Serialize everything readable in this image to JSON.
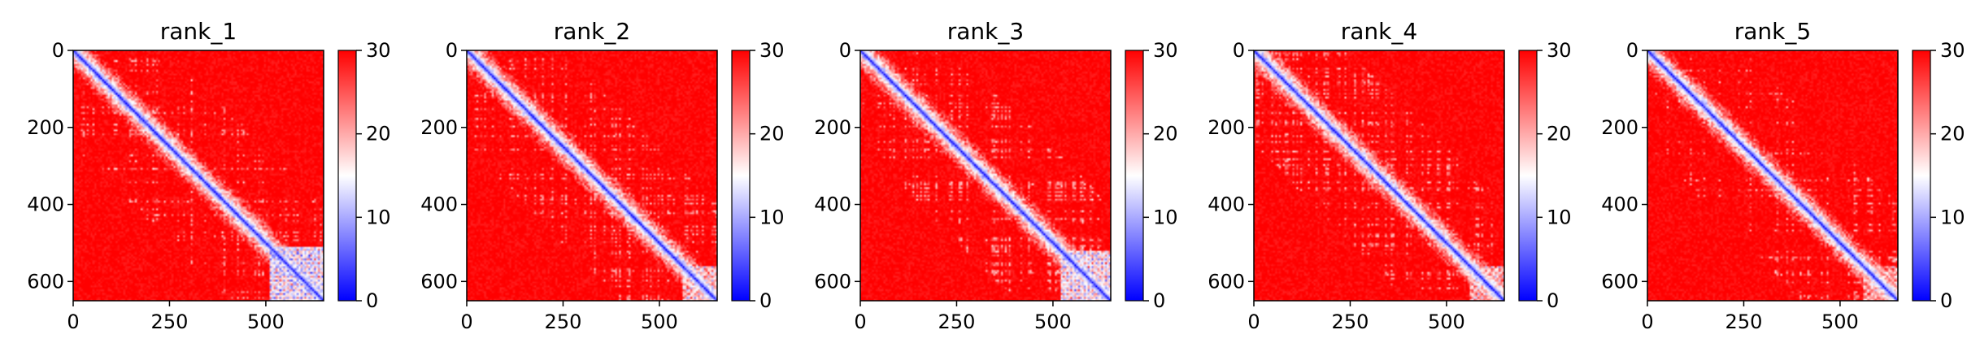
{
  "chart_data": [
    {
      "type": "heatmap",
      "title": "rank_1",
      "xticks": [
        0,
        250,
        500
      ],
      "yticks": [
        0,
        200,
        400,
        600
      ],
      "xlim": [
        0,
        650
      ],
      "ylim": [
        650,
        0
      ],
      "colorbar": {
        "min": 0,
        "max": 30,
        "ticks": [
          0,
          10,
          20,
          30
        ]
      },
      "colormap": {
        "low": "#0000ff",
        "mid": "#ffffff",
        "high": "#ff0000"
      },
      "features": {
        "diagonal_width": 4,
        "block_start": 510,
        "block_intensity": 0.85,
        "noise_seed": 11
      }
    },
    {
      "type": "heatmap",
      "title": "rank_2",
      "xticks": [
        0,
        250,
        500
      ],
      "yticks": [
        0,
        200,
        400,
        600
      ],
      "xlim": [
        0,
        650
      ],
      "ylim": [
        650,
        0
      ],
      "colorbar": {
        "min": 0,
        "max": 30,
        "ticks": [
          0,
          10,
          20,
          30
        ]
      },
      "colormap": {
        "low": "#0000ff",
        "mid": "#ffffff",
        "high": "#ff0000"
      },
      "features": {
        "diagonal_width": 4,
        "block_start": 560,
        "block_intensity": 0.7,
        "noise_seed": 23
      }
    },
    {
      "type": "heatmap",
      "title": "rank_3",
      "xticks": [
        0,
        250,
        500
      ],
      "yticks": [
        0,
        200,
        400,
        600
      ],
      "xlim": [
        0,
        650
      ],
      "ylim": [
        650,
        0
      ],
      "colorbar": {
        "min": 0,
        "max": 30,
        "ticks": [
          0,
          10,
          20,
          30
        ]
      },
      "colormap": {
        "low": "#0000ff",
        "mid": "#ffffff",
        "high": "#ff0000"
      },
      "features": {
        "diagonal_width": 4,
        "block_start": 520,
        "block_intensity": 0.8,
        "noise_seed": 37
      }
    },
    {
      "type": "heatmap",
      "title": "rank_4",
      "xticks": [
        0,
        250,
        500
      ],
      "yticks": [
        0,
        200,
        400,
        600
      ],
      "xlim": [
        0,
        650
      ],
      "ylim": [
        650,
        0
      ],
      "colorbar": {
        "min": 0,
        "max": 30,
        "ticks": [
          0,
          10,
          20,
          30
        ]
      },
      "colormap": {
        "low": "#0000ff",
        "mid": "#ffffff",
        "high": "#ff0000"
      },
      "features": {
        "diagonal_width": 4,
        "block_start": 560,
        "block_intensity": 0.65,
        "noise_seed": 41
      }
    },
    {
      "type": "heatmap",
      "title": "rank_5",
      "xticks": [
        0,
        250,
        500
      ],
      "yticks": [
        0,
        200,
        400,
        600
      ],
      "xlim": [
        0,
        650
      ],
      "ylim": [
        650,
        0
      ],
      "colorbar": {
        "min": 0,
        "max": 30,
        "ticks": [
          0,
          10,
          20,
          30
        ]
      },
      "colormap": {
        "low": "#0000ff",
        "mid": "#ffffff",
        "high": "#ff0000"
      },
      "features": {
        "diagonal_width": 4,
        "block_start": 560,
        "block_intensity": 0.6,
        "noise_seed": 53
      }
    }
  ]
}
